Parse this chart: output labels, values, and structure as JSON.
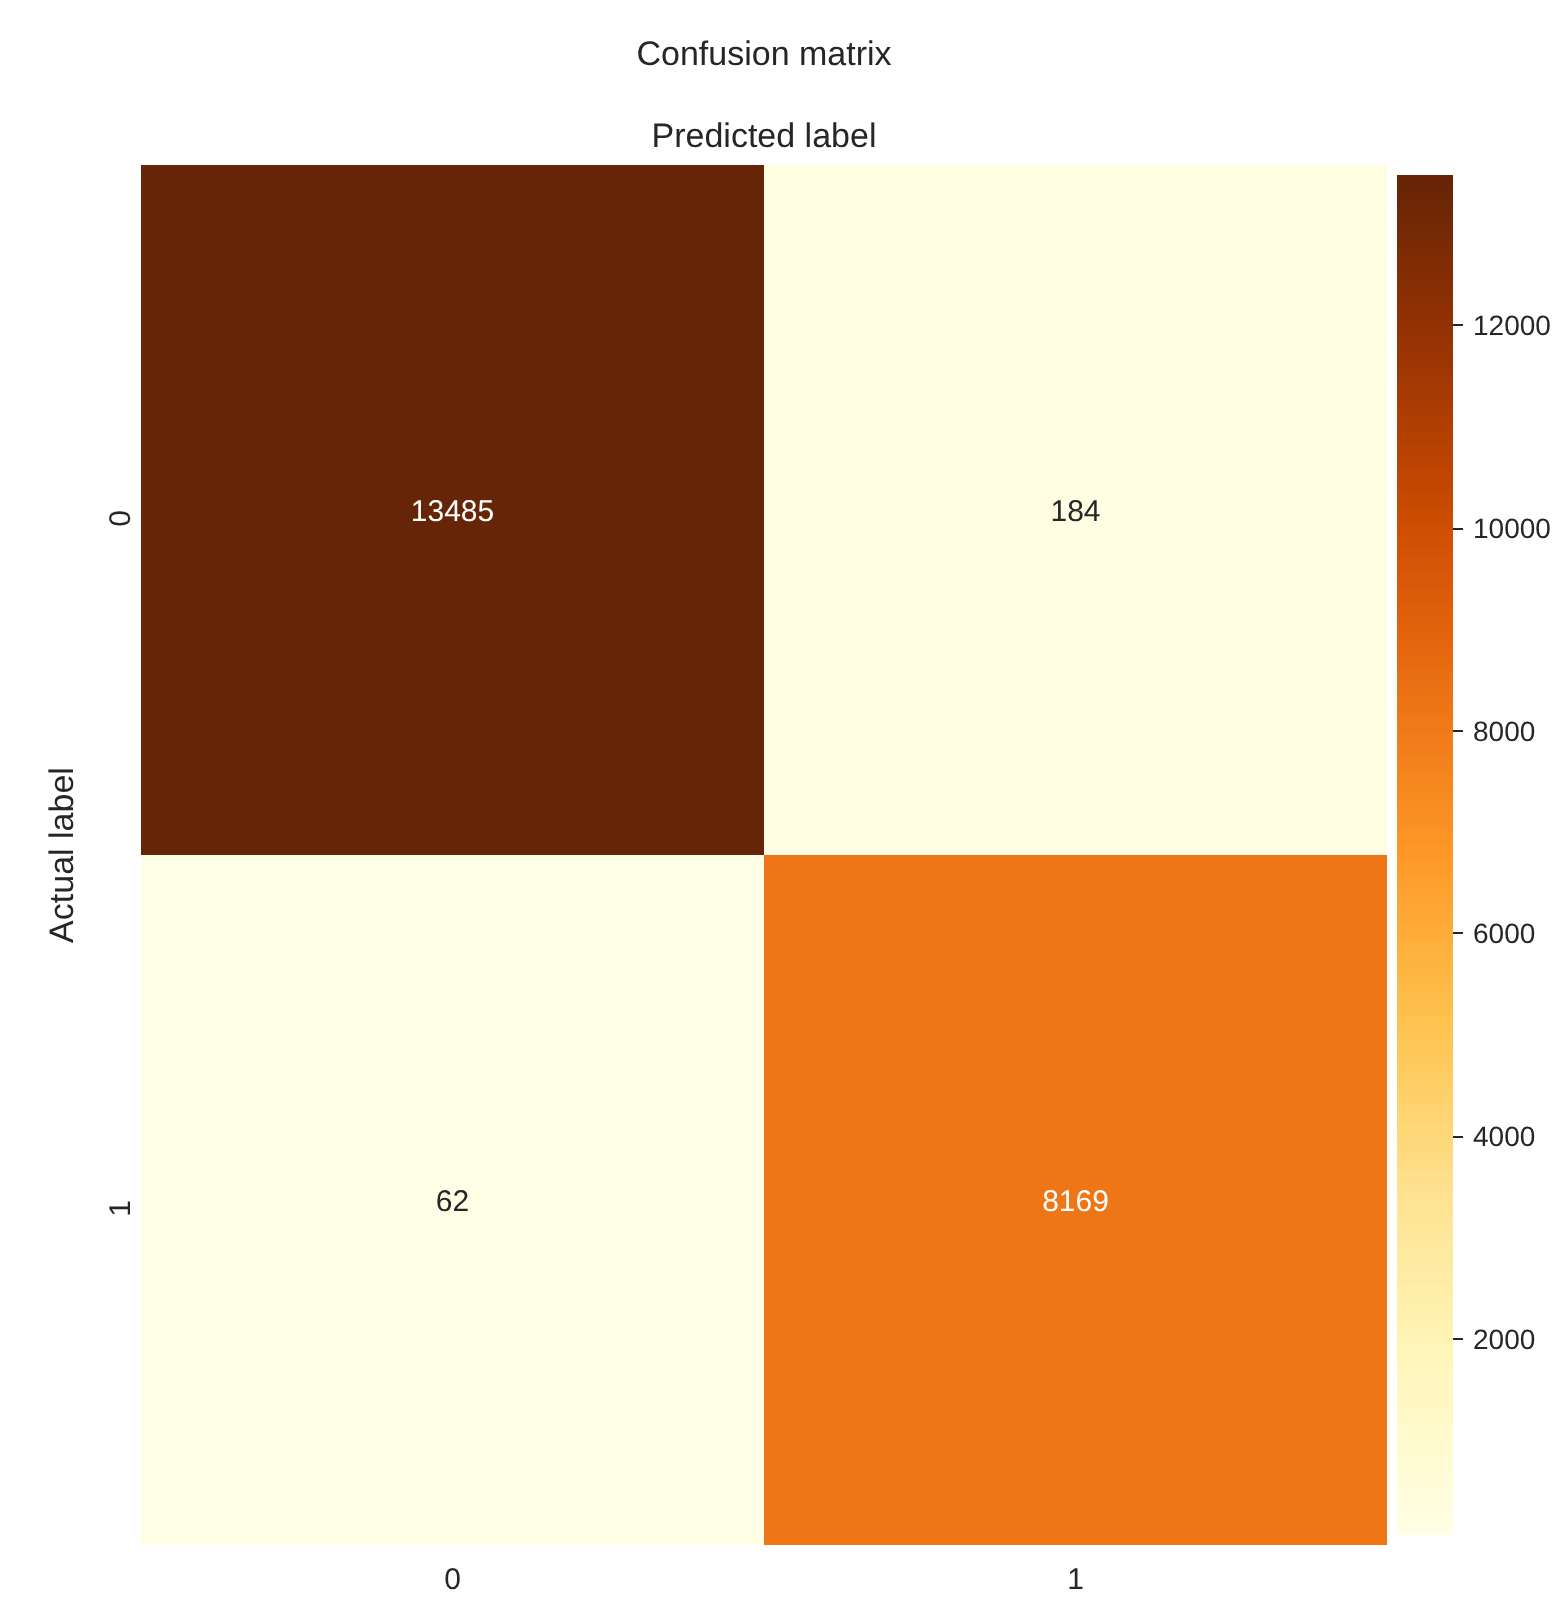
{
  "chart_data": {
    "type": "heatmap",
    "title": "Confusion matrix",
    "xlabel": "Predicted label",
    "ylabel": "Actual label",
    "categories": [
      "0",
      "1"
    ],
    "y_categories": [
      "0",
      "1"
    ],
    "cells": [
      [
        13485,
        184
      ],
      [
        62,
        8169
      ]
    ],
    "clim": [
      62,
      13485
    ],
    "cticks": [
      2000,
      4000,
      6000,
      8000,
      10000,
      12000
    ],
    "data_labels": true
  }
}
